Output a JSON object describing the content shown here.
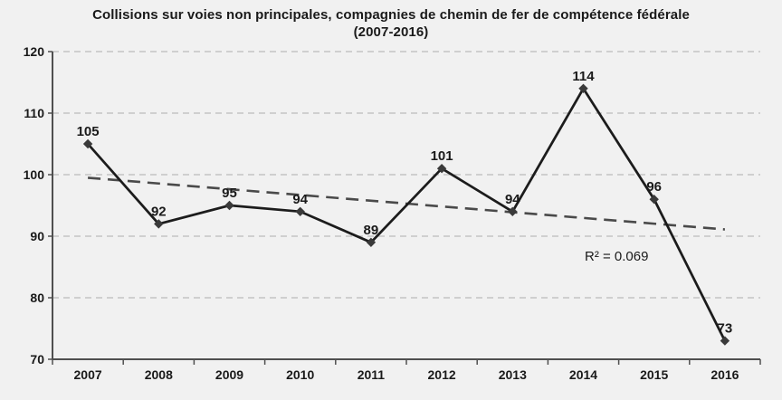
{
  "title": {
    "line1": "Collisions sur voies non principales, compagnies de chemin de fer de compétence fédérale",
    "line2": "(2007-2016)"
  },
  "chart_data": {
    "type": "line",
    "title": "Collisions sur voies non principales, compagnies de chemin de fer de compétence fédérale (2007-2016)",
    "categories": [
      "2007",
      "2008",
      "2009",
      "2010",
      "2011",
      "2012",
      "2013",
      "2014",
      "2015",
      "2016"
    ],
    "series": [
      {
        "name": "Collisions",
        "values": [
          105,
          92,
          95,
          94,
          89,
          101,
          94,
          114,
          96,
          73
        ]
      }
    ],
    "data_labels": [
      105,
      92,
      95,
      94,
      89,
      101,
      94,
      114,
      96,
      73
    ],
    "xlabel": "",
    "ylabel": "",
    "ylim": [
      70,
      120
    ],
    "ytick_step": 10,
    "yticks": [
      70,
      80,
      90,
      100,
      110,
      120
    ],
    "grid": "horizontal-dashed",
    "legend": "none",
    "trendline": {
      "type": "linear",
      "style": "dashed",
      "start_value": 99.5,
      "end_value": 91.1,
      "r2_label": "R² = 0.069"
    }
  },
  "colors": {
    "background": "#f1f1f1",
    "series_line": "#1c1c1c",
    "marker": "#3a3a3a",
    "trendline": "#4a4a4a",
    "gridline": "#c4c4c4",
    "axis": "#4f4f4f",
    "text": "#1a1a1a"
  }
}
